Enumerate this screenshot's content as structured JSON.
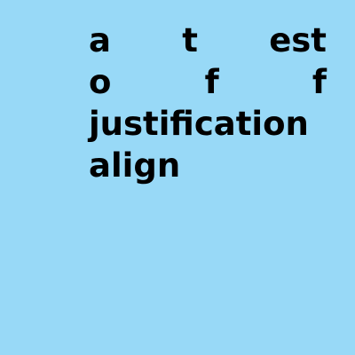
{
  "canvas": {
    "background_color": "#98d9f7",
    "text_color": "#000000"
  },
  "lines": [
    [
      "a",
      "t",
      "est"
    ],
    [
      "o",
      "f",
      "f"
    ],
    [
      "justification"
    ],
    [
      "align"
    ]
  ]
}
